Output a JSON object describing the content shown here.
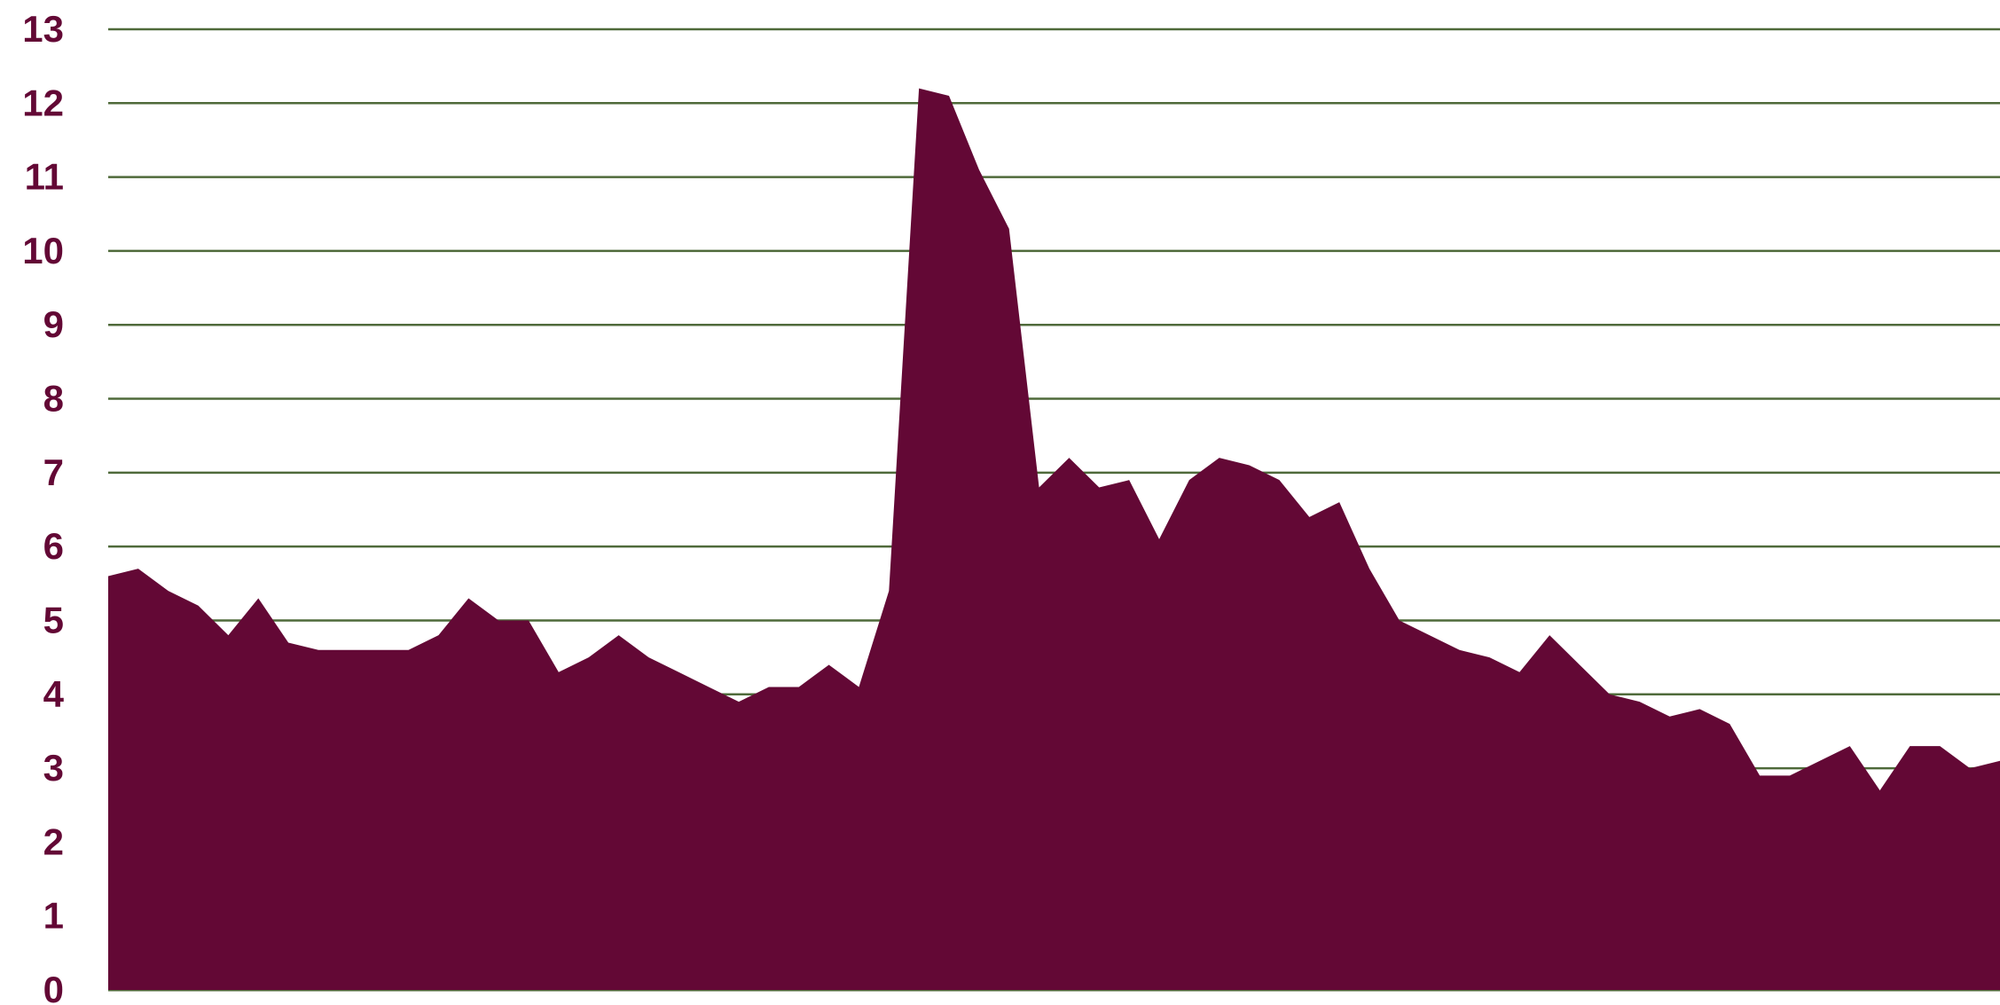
{
  "chart_data": {
    "type": "area",
    "title": "",
    "xlabel": "",
    "ylabel": "",
    "ylim": [
      0,
      13
    ],
    "yticks": [
      "0",
      "1",
      "2",
      "3",
      "4",
      "5",
      "6",
      "7",
      "8",
      "9",
      "10",
      "11",
      "12",
      "13"
    ],
    "grid": true,
    "legend": "none",
    "colors": {
      "fill": "#630835",
      "grid": "#4f6a3a",
      "tick_text": "#630835"
    },
    "series": [
      {
        "values": [
          5.6,
          5.7,
          5.4,
          5.2,
          4.8,
          5.3,
          4.7,
          4.6,
          4.6,
          4.6,
          4.6,
          4.8,
          5.3,
          5.0,
          5.0,
          4.3,
          4.5,
          4.8,
          4.5,
          4.3,
          4.1,
          3.9,
          4.1,
          4.1,
          4.4,
          4.1,
          5.4,
          12.2,
          12.1,
          11.1,
          10.3,
          6.8,
          7.2,
          6.8,
          6.9,
          6.1,
          6.9,
          7.2,
          7.1,
          6.9,
          6.4,
          6.6,
          5.7,
          5.0,
          4.8,
          4.6,
          4.5,
          4.3,
          4.8,
          4.4,
          4.0,
          3.9,
          3.7,
          3.8,
          3.6,
          2.9,
          2.9,
          3.1,
          3.3,
          2.7,
          3.3,
          3.3,
          3.0,
          3.1
        ]
      }
    ]
  }
}
